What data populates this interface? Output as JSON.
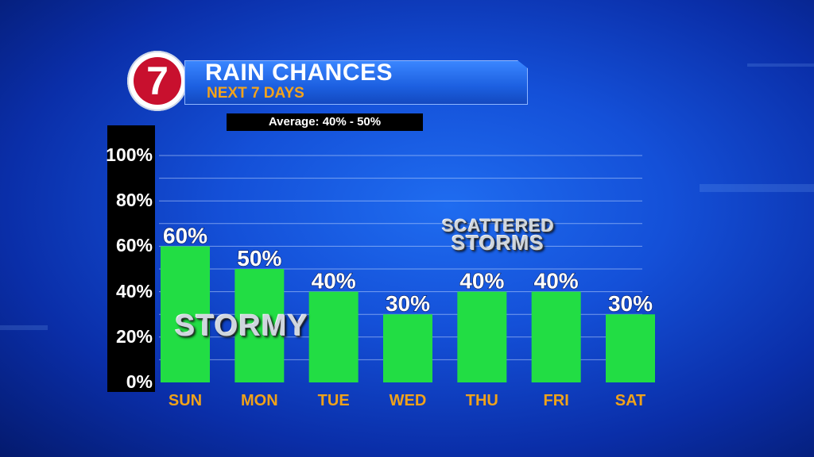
{
  "header": {
    "logo_text": "7",
    "title": "RAIN CHANCES",
    "subtitle": "NEXT 7 DAYS",
    "average": "Average: 40% - 50%"
  },
  "annotations": {
    "stormy": "STORMY",
    "scattered_line1": "SCATTERED",
    "scattered_line2": "STORMS"
  },
  "colors": {
    "bar": "#22dd44",
    "day_label": "#f0a21a",
    "subtitle": "#f5a31a",
    "logo_red": "#c8102e"
  },
  "chart_data": {
    "type": "bar",
    "title": "RAIN CHANCES",
    "subtitle": "NEXT 7 DAYS",
    "categories": [
      "SUN",
      "MON",
      "TUE",
      "WED",
      "THU",
      "FRI",
      "SAT"
    ],
    "values": [
      60,
      50,
      40,
      30,
      40,
      40,
      30
    ],
    "data_labels": [
      "60%",
      "50%",
      "40%",
      "30%",
      "40%",
      "40%",
      "30%"
    ],
    "yticks": [
      "0%",
      "20%",
      "40%",
      "60%",
      "80%",
      "100%"
    ],
    "ytick_values": [
      0,
      20,
      40,
      60,
      80,
      100
    ],
    "ylim": [
      0,
      100
    ],
    "xlabel": "",
    "ylabel": "",
    "grid": true,
    "legend": "none"
  }
}
